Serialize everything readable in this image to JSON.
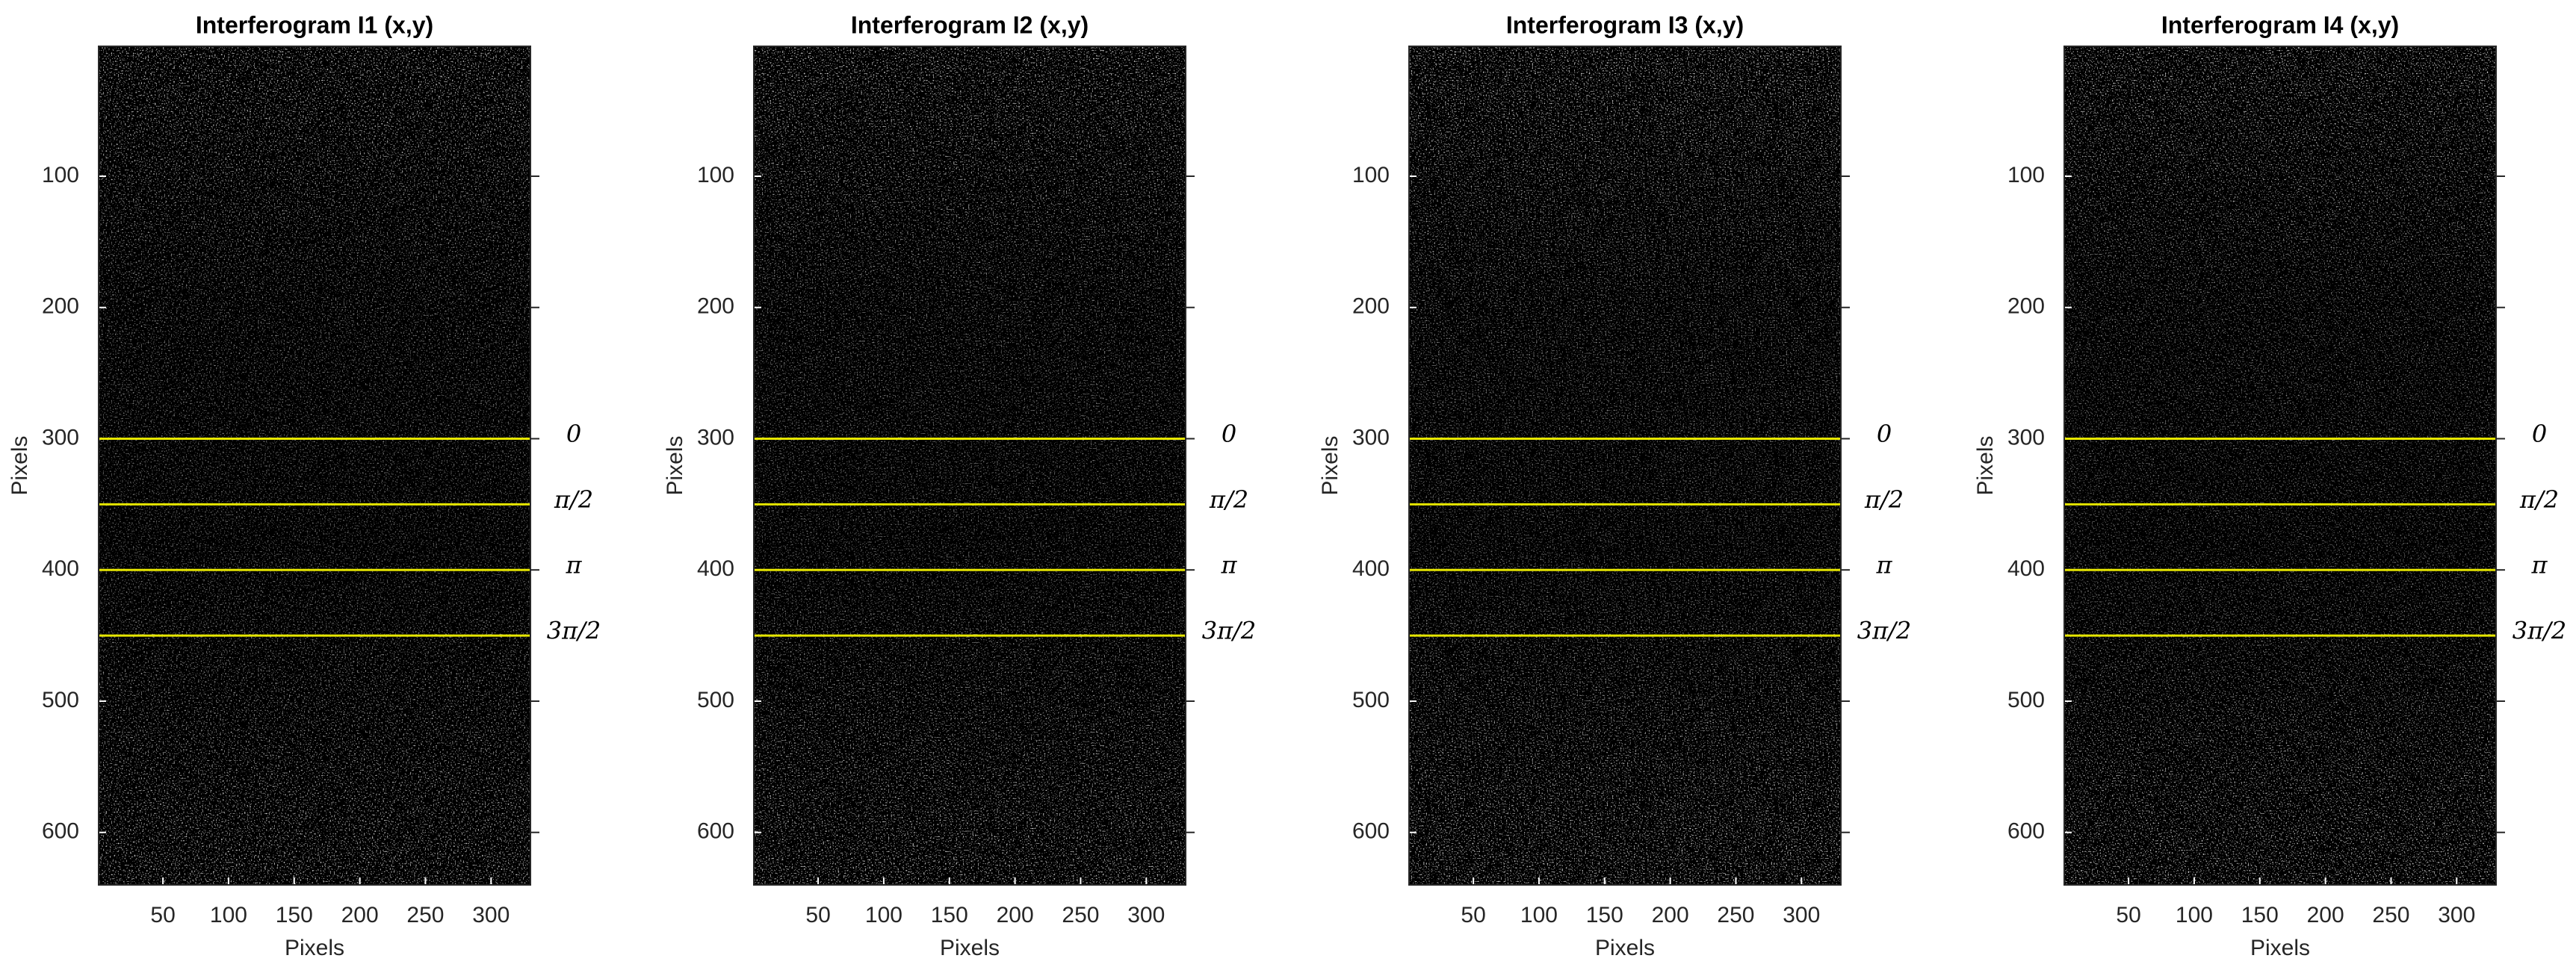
{
  "chart_data": [
    {
      "type": "image",
      "title": "Interferogram I1 (x,y)",
      "xlabel": "Pixels",
      "ylabel": "Pixels",
      "xlim": [
        1,
        330
      ],
      "ylim": [
        640,
        1
      ],
      "xticks": [
        50,
        100,
        150,
        200,
        250,
        300
      ],
      "yticks": [
        100,
        200,
        300,
        400,
        500,
        600
      ],
      "hlines": {
        "color": "#e6e600",
        "values": [
          300,
          350,
          400,
          450
        ],
        "labels": [
          "0",
          "π/2",
          "π",
          "3π/2"
        ]
      }
    },
    {
      "type": "image",
      "title": "Interferogram I2 (x,y)",
      "xlabel": "Pixels",
      "ylabel": "Pixels",
      "xlim": [
        1,
        330
      ],
      "ylim": [
        640,
        1
      ],
      "xticks": [
        50,
        100,
        150,
        200,
        250,
        300
      ],
      "yticks": [
        100,
        200,
        300,
        400,
        500,
        600
      ],
      "hlines": {
        "color": "#e6e600",
        "values": [
          300,
          350,
          400,
          450
        ],
        "labels": [
          "0",
          "π/2",
          "π",
          "3π/2"
        ]
      }
    },
    {
      "type": "image",
      "title": "Interferogram I3 (x,y)",
      "xlabel": "Pixels",
      "ylabel": "Pixels",
      "xlim": [
        1,
        330
      ],
      "ylim": [
        640,
        1
      ],
      "xticks": [
        50,
        100,
        150,
        200,
        250,
        300
      ],
      "yticks": [
        100,
        200,
        300,
        400,
        500,
        600
      ],
      "hlines": {
        "color": "#e6e600",
        "values": [
          300,
          350,
          400,
          450
        ],
        "labels": [
          "0",
          "π/2",
          "π",
          "3π/2"
        ]
      }
    },
    {
      "type": "image",
      "title": "Interferogram I4 (x,y)",
      "xlabel": "Pixels",
      "ylabel": "Pixels",
      "xlim": [
        1,
        330
      ],
      "ylim": [
        640,
        1
      ],
      "xticks": [
        50,
        100,
        150,
        200,
        250,
        300
      ],
      "yticks": [
        100,
        200,
        300,
        400,
        500,
        600
      ],
      "hlines": {
        "color": "#e6e600",
        "values": [
          300,
          350,
          400,
          450
        ],
        "labels": [
          "0",
          "π/2",
          "π",
          "3π/2"
        ]
      }
    }
  ]
}
